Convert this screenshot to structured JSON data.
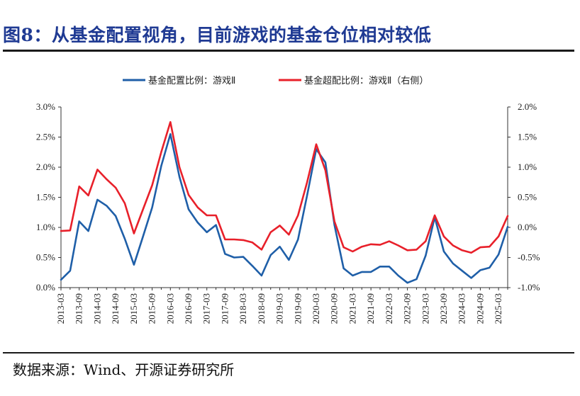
{
  "page": {
    "title": "图8：从基金配置视角，目前游戏的基金仓位相对较低",
    "source": "数据来源：Wind、开源证券研究所"
  },
  "chart_data": {
    "type": "line",
    "title": "图8：从基金配置视角，目前游戏的基金仓位相对较低",
    "categories": [
      "2013-03",
      "2013-06",
      "2013-09",
      "2013-12",
      "2014-03",
      "2014-06",
      "2014-09",
      "2014-12",
      "2015-03",
      "2015-06",
      "2015-09",
      "2015-12",
      "2016-03",
      "2016-06",
      "2016-09",
      "2016-12",
      "2017-03",
      "2017-06",
      "2017-09",
      "2017-12",
      "2018-03",
      "2018-06",
      "2018-09",
      "2018-12",
      "2019-03",
      "2019-06",
      "2019-09",
      "2019-12",
      "2020-03",
      "2020-06",
      "2020-09",
      "2020-12",
      "2021-03",
      "2021-06",
      "2021-09",
      "2021-12",
      "2022-03",
      "2022-06",
      "2022-09",
      "2022-12",
      "2023-03",
      "2023-06",
      "2023-09",
      "2023-12",
      "2024-03",
      "2024-06",
      "2024-09",
      "2024-12",
      "2025-03",
      "2025-06"
    ],
    "x_tick_labels": [
      "2013-03",
      "2013-09",
      "2014-03",
      "2014-09",
      "2015-03",
      "2015-09",
      "2016-03",
      "2016-09",
      "2017-03",
      "2017-09",
      "2018-03",
      "2018-09",
      "2019-03",
      "2019-09",
      "2020-03",
      "2020-09",
      "2021-03",
      "2021-09",
      "2022-03",
      "2022-09",
      "2023-03",
      "2023-09",
      "2024-03",
      "2024-09",
      "2025-03"
    ],
    "series": [
      {
        "name": "基金配置比例：游戏Ⅱ",
        "axis": "left",
        "color": "#1f5fa8",
        "values": [
          0.13,
          0.28,
          1.1,
          0.94,
          1.46,
          1.36,
          1.19,
          0.81,
          0.38,
          0.85,
          1.33,
          2.02,
          2.55,
          1.84,
          1.3,
          1.08,
          0.92,
          1.04,
          0.56,
          0.5,
          0.51,
          0.36,
          0.2,
          0.54,
          0.68,
          0.46,
          0.8,
          1.53,
          2.3,
          2.08,
          1.04,
          0.32,
          0.2,
          0.26,
          0.26,
          0.35,
          0.35,
          0.2,
          0.08,
          0.14,
          0.53,
          1.17,
          0.6,
          0.4,
          0.28,
          0.16,
          0.29,
          0.33,
          0.55,
          1.01
        ]
      },
      {
        "name": "基金超配比例：游戏Ⅱ（右侧）",
        "axis": "right",
        "color": "#e8202a",
        "values": [
          -0.06,
          -0.05,
          0.68,
          0.53,
          0.96,
          0.8,
          0.66,
          0.4,
          -0.1,
          0.3,
          0.7,
          1.25,
          1.75,
          1.0,
          0.54,
          0.33,
          0.2,
          0.2,
          -0.2,
          -0.2,
          -0.21,
          -0.25,
          -0.37,
          -0.08,
          0.03,
          -0.12,
          0.2,
          0.75,
          1.38,
          0.95,
          0.1,
          -0.33,
          -0.4,
          -0.32,
          -0.28,
          -0.29,
          -0.23,
          -0.3,
          -0.38,
          -0.37,
          -0.23,
          0.2,
          -0.15,
          -0.3,
          -0.38,
          -0.42,
          -0.33,
          -0.32,
          -0.15,
          0.19
        ]
      }
    ],
    "y_left": {
      "min": 0,
      "max": 3.0,
      "ticks": [
        "0.0%",
        "0.5%",
        "1.0%",
        "1.5%",
        "2.0%",
        "2.5%",
        "3.0%"
      ]
    },
    "y_right": {
      "min": -1.0,
      "max": 2.0,
      "ticks": [
        "-1.0%",
        "-0.5%",
        "0.0%",
        "0.5%",
        "1.0%",
        "1.5%",
        "2.0%"
      ]
    },
    "legend": "top-center",
    "grid": false
  }
}
